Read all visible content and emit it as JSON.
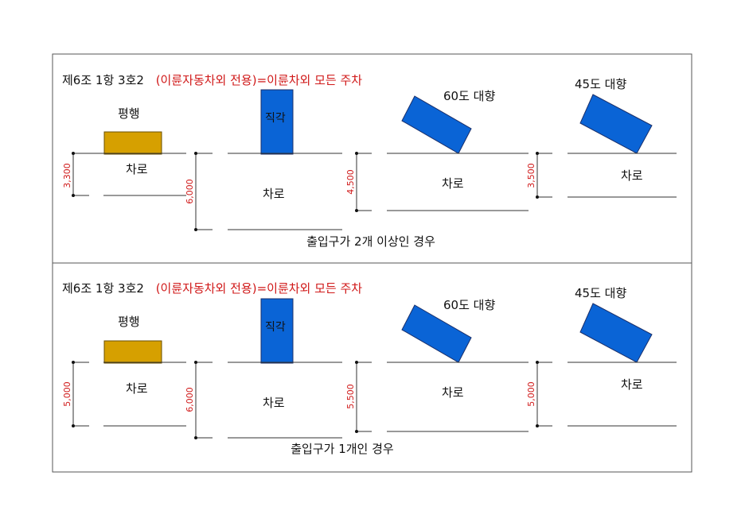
{
  "colors": {
    "parallel_car": "#d6a000",
    "car": "#0a64d6",
    "car_stroke": "#1a2f6a",
    "dimension_text": "#d01818",
    "heading_red": "#d01818",
    "line": "#333333"
  },
  "panels": [
    {
      "heading_prefix": "제6조 1항 3호2",
      "heading_red": "(이륜자동차외 전용)=이륜차외 모든 주차",
      "caption": "출입구가 2개 이상인 경우",
      "parallel_label": "평행",
      "right_angle_label": "직각",
      "deg60_label": "60도 대향",
      "deg45_label": "45도 대향",
      "lane_label": "차로",
      "dimensions": [
        "3,300",
        "6,000",
        "4,500",
        "3,500"
      ]
    },
    {
      "heading_prefix": "제6조 1항 3호2",
      "heading_red": "(이륜자동차외 전용)=이륜차외 모든 주차",
      "caption": "출입구가 1개인 경우",
      "parallel_label": "평행",
      "right_angle_label": "직각",
      "deg60_label": "60도 대향",
      "deg45_label": "45도 대향",
      "lane_label": "차로",
      "dimensions": [
        "5,000",
        "6,000",
        "5,500",
        "5,000"
      ]
    }
  ]
}
